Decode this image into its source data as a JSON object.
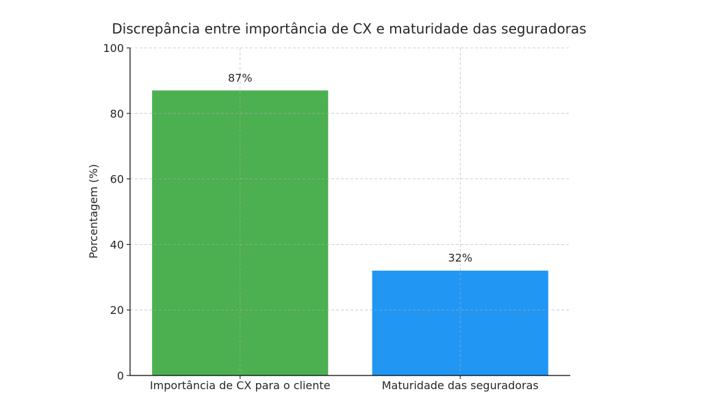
{
  "chart_data": {
    "type": "bar",
    "title": "Discrepância entre importância de CX e maturidade das seguradoras",
    "xlabel": "",
    "ylabel": "Porcentagem (%)",
    "categories": [
      "Importância de CX para o cliente",
      "Maturidade das seguradoras"
    ],
    "values": [
      87,
      32
    ],
    "data_labels": [
      "87%",
      "32%"
    ],
    "colors": [
      "#4caf50",
      "#2196f3"
    ],
    "ylim": [
      0,
      100
    ],
    "yticks": [
      0,
      20,
      40,
      60,
      80,
      100
    ],
    "ytick_labels": [
      "0",
      "20",
      "40",
      "60",
      "80",
      "100"
    ],
    "grid": true,
    "legend": "none"
  }
}
